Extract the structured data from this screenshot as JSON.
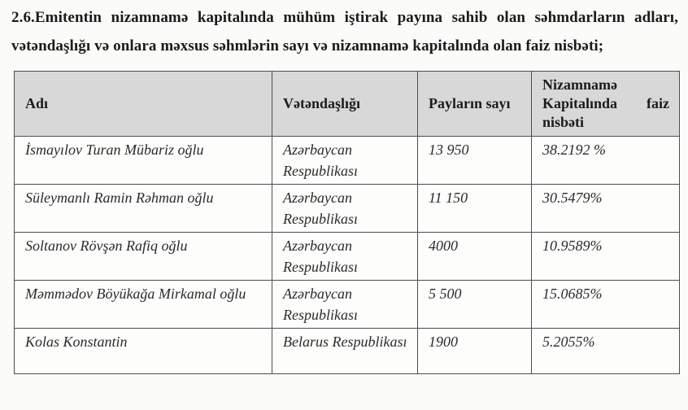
{
  "page": {
    "heading": "2.6.Emitentin nizamnamə kapitalında mühüm iştirak payına sahib olan səhmdarların adları, vətəndaşlığı və onlara məxsus səhmlərin sayı və nizamnamə kapitalında olan faiz nisbəti;"
  },
  "table": {
    "columns": {
      "name": "Adı",
      "citizenship": "Vətəndaşlığı",
      "shares": "Payların sayı",
      "percent": "Nizamnamə Kapitalında faiz nisbəti"
    },
    "rows": [
      {
        "name": "İsmayılov Turan Mübariz oğlu",
        "citizenship": "Azərbaycan Respublikası",
        "shares": "13 950",
        "percent": "38.2192 %"
      },
      {
        "name": "Süleymanlı Ramin Rəhman oğlu",
        "citizenship": "Azərbaycan Respublikası",
        "shares": "11 150",
        "percent": "30.5479%"
      },
      {
        "name": "Soltanov Rövşən Rafiq oğlu",
        "citizenship": "Azərbaycan Respublikası",
        "shares": "4000",
        "percent": "10.9589%"
      },
      {
        "name": "Məmmədov Böyükağa Mirkamal oğlu",
        "citizenship": "Azərbaycan Respublikası",
        "shares": "5 500",
        "percent": "15.0685%"
      },
      {
        "name": "Kolas Konstantin",
        "citizenship": "Belarus Respublikası",
        "shares": "1900",
        "percent": "5.2055%"
      }
    ]
  },
  "colors": {
    "header_bg": "#d8d8d8",
    "border": "#4d4d4d",
    "page_bg": "#fbfbfa",
    "text": "#1e1e1e"
  }
}
